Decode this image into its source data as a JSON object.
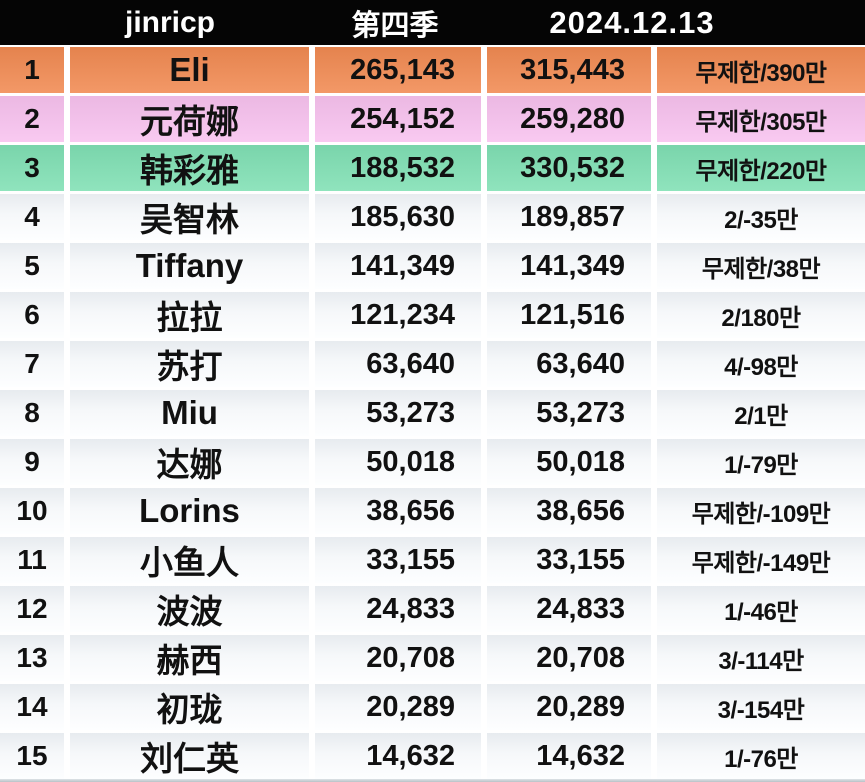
{
  "table": {
    "header": {
      "title": "jinricp",
      "season": "第四季",
      "date": "2024.12.13"
    },
    "rows": [
      {
        "rank": "1",
        "name": "Eli",
        "value1": "265,143",
        "value2": "315,443",
        "quota": "무제한/390만",
        "highlight": "rank1"
      },
      {
        "rank": "2",
        "name": "元荷娜",
        "value1": "254,152",
        "value2": "259,280",
        "quota": "무제한/305만",
        "highlight": "rank2"
      },
      {
        "rank": "3",
        "name": "韩彩雅",
        "value1": "188,532",
        "value2": "330,532",
        "quota": "무제한/220만",
        "highlight": "rank3"
      },
      {
        "rank": "4",
        "name": "吴智林",
        "value1": "185,630",
        "value2": "189,857",
        "quota": "2/-35만",
        "highlight": "none"
      },
      {
        "rank": "5",
        "name": "Tiffany",
        "value1": "141,349",
        "value2": "141,349",
        "quota": "무제한/38만",
        "highlight": "none"
      },
      {
        "rank": "6",
        "name": "拉拉",
        "value1": "121,234",
        "value2": "121,516",
        "quota": "2/180만",
        "highlight": "none"
      },
      {
        "rank": "7",
        "name": "苏打",
        "value1": "63,640",
        "value2": "63,640",
        "quota": "4/-98만",
        "highlight": "none"
      },
      {
        "rank": "8",
        "name": "Miu",
        "value1": "53,273",
        "value2": "53,273",
        "quota": "2/1만",
        "highlight": "none"
      },
      {
        "rank": "9",
        "name": "达娜",
        "value1": "50,018",
        "value2": "50,018",
        "quota": "1/-79만",
        "highlight": "none"
      },
      {
        "rank": "10",
        "name": "Lorins",
        "value1": "38,656",
        "value2": "38,656",
        "quota": "무제한/-109만",
        "highlight": "none"
      },
      {
        "rank": "11",
        "name": "小鱼人",
        "value1": "33,155",
        "value2": "33,155",
        "quota": "무제한/-149만",
        "highlight": "none"
      },
      {
        "rank": "12",
        "name": "波波",
        "value1": "24,833",
        "value2": "24,833",
        "quota": "1/-46만",
        "highlight": "none"
      },
      {
        "rank": "13",
        "name": "赫西",
        "value1": "20,708",
        "value2": "20,708",
        "quota": "3/-114만",
        "highlight": "none"
      },
      {
        "rank": "14",
        "name": "初珑",
        "value1": "20,289",
        "value2": "20,289",
        "quota": "3/-154만",
        "highlight": "none"
      },
      {
        "rank": "15",
        "name": "刘仁英",
        "value1": "14,632",
        "value2": "14,632",
        "quota": "1/-76만",
        "highlight": "none"
      }
    ]
  },
  "colors": {
    "rank1": "#F18A52",
    "rank2": "#F8C2EF",
    "rank3": "#80E0B4",
    "header_bg": "#050505",
    "header_text": "#FFFFFF",
    "row_text": "#111111"
  },
  "chart_data": {
    "type": "table",
    "title": "jinricp 第四季 2024.12.13",
    "columns": [
      "rank",
      "name",
      "value1",
      "value2",
      "quota"
    ],
    "rows": [
      [
        1,
        "Eli",
        265143,
        315443,
        "무제한/390만"
      ],
      [
        2,
        "元荷娜",
        254152,
        259280,
        "무제한/305만"
      ],
      [
        3,
        "韩彩雅",
        188532,
        330532,
        "무제한/220만"
      ],
      [
        4,
        "吴智林",
        185630,
        189857,
        "2/-35만"
      ],
      [
        5,
        "Tiffany",
        141349,
        141349,
        "무제한/38만"
      ],
      [
        6,
        "拉拉",
        121234,
        121516,
        "2/180만"
      ],
      [
        7,
        "苏打",
        63640,
        63640,
        "4/-98만"
      ],
      [
        8,
        "Miu",
        53273,
        53273,
        "2/1만"
      ],
      [
        9,
        "达娜",
        50018,
        50018,
        "1/-79만"
      ],
      [
        10,
        "Lorins",
        38656,
        38656,
        "무제한/-109만"
      ],
      [
        11,
        "小鱼人",
        33155,
        33155,
        "무제한/-149만"
      ],
      [
        12,
        "波波",
        24833,
        24833,
        "1/-46만"
      ],
      [
        13,
        "赫西",
        20708,
        20708,
        "3/-114만"
      ],
      [
        14,
        "初珑",
        20289,
        20289,
        "3/-154만"
      ],
      [
        15,
        "刘仁英",
        14632,
        14632,
        "1/-76만"
      ]
    ]
  }
}
